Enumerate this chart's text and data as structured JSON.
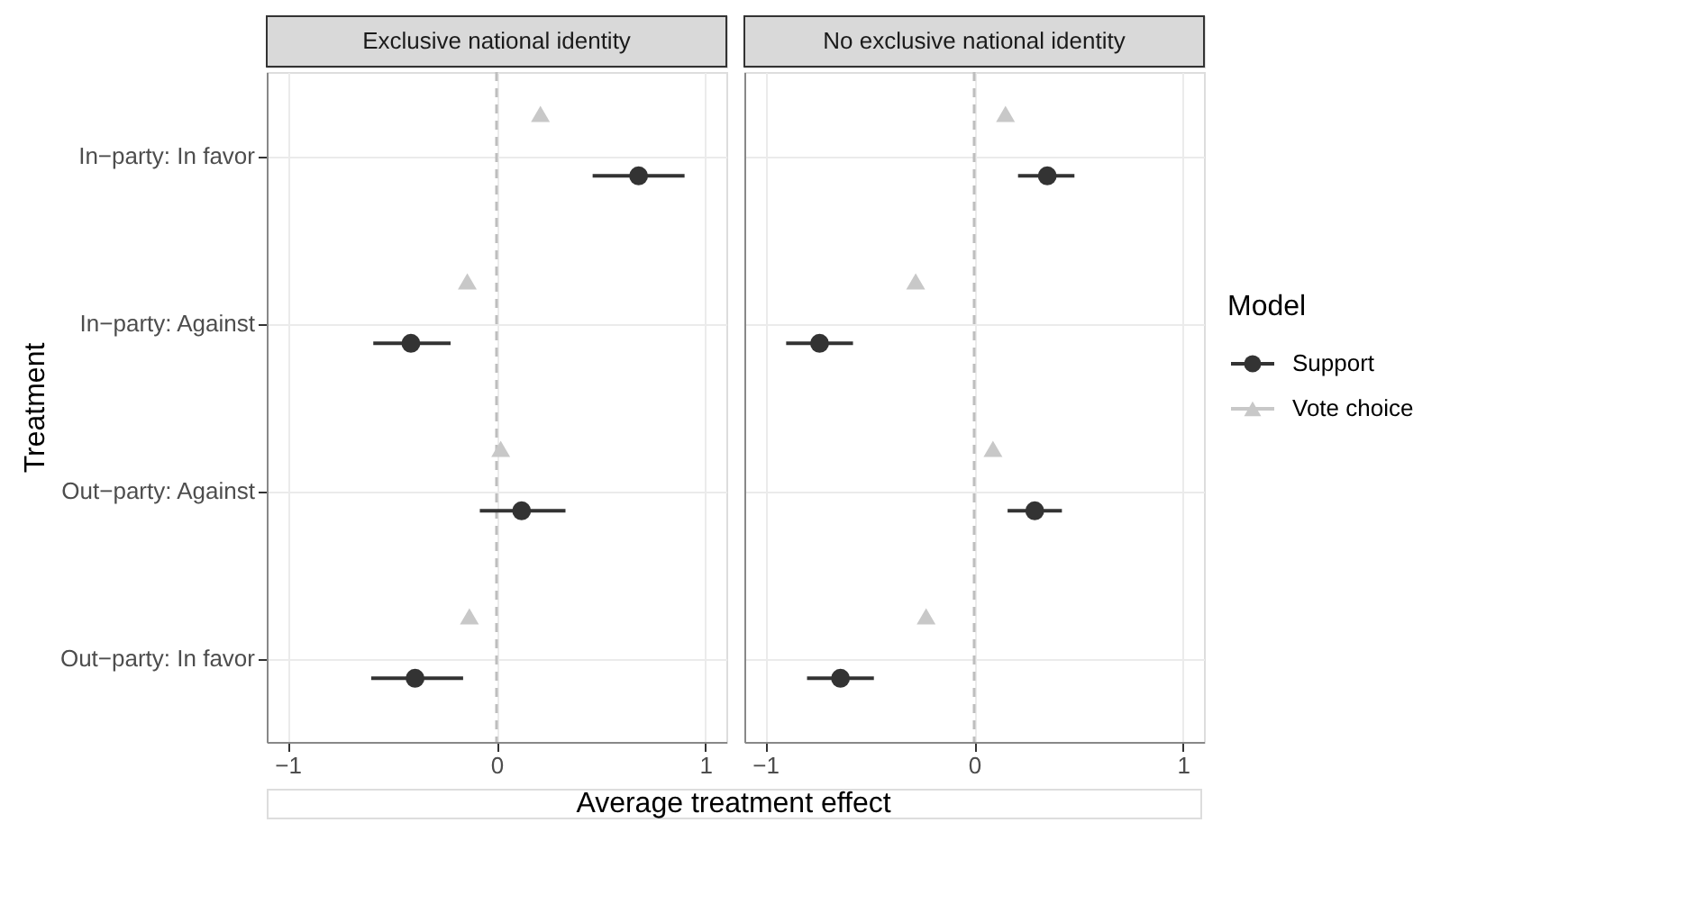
{
  "chart_data": [
    {
      "type": "scatter",
      "title": "Exclusive national identity",
      "orientation": "horizontal",
      "categories": [
        "In−party: In favor",
        "In−party: Against",
        "Out−party: Against",
        "Out−party: In favor"
      ],
      "ylabel": "Treatment",
      "xlabel": "Average treatment effect",
      "legend_title": "Model",
      "legend": "right",
      "grid": true,
      "xlim": [
        -1.1,
        1.1
      ],
      "xticks": [
        {
          "value": -1,
          "label": "−1"
        },
        0,
        1
      ],
      "series": [
        {
          "name": "Support",
          "color": "#333333",
          "marker": "circle",
          "values": [
            0.68,
            -0.41,
            0.12,
            -0.39
          ],
          "errors": [
            [
              0.46,
              0.9
            ],
            [
              -0.59,
              -0.22
            ],
            [
              -0.08,
              0.33
            ],
            [
              -0.6,
              -0.16
            ]
          ]
        },
        {
          "name": "Vote choice",
          "color": "#c8c8c8",
          "marker": "triangle",
          "values": [
            0.21,
            -0.14,
            0.02,
            -0.13
          ]
        }
      ],
      "ref_lines": [
        {
          "axis": "x",
          "value": 0,
          "color": "#bebebe",
          "line_style": "dashed"
        }
      ]
    },
    {
      "type": "scatter",
      "title": "No exclusive national identity",
      "orientation": "horizontal",
      "categories": [
        "In−party: In favor",
        "In−party: Against",
        "Out−party: Against",
        "Out−party: In favor"
      ],
      "tick_labels": "x",
      "legend": "right",
      "grid": true,
      "xlim": [
        -1.1,
        1.1
      ],
      "xticks": [
        {
          "value": -1,
          "label": "−1"
        },
        0,
        1
      ],
      "series": [
        {
          "name": "Support",
          "color": "#333333",
          "marker": "circle",
          "values": [
            0.35,
            -0.74,
            0.29,
            -0.64
          ],
          "errors": [
            [
              0.21,
              0.48
            ],
            [
              -0.9,
              -0.58
            ],
            [
              0.16,
              0.42
            ],
            [
              -0.8,
              -0.48
            ]
          ]
        },
        {
          "name": "Vote choice",
          "color": "#c8c8c8",
          "marker": "triangle",
          "values": [
            0.15,
            -0.28,
            0.09,
            -0.23
          ]
        }
      ],
      "ref_lines": [
        {
          "axis": "x",
          "value": 0,
          "color": "#bebebe",
          "line_style": "dashed"
        }
      ]
    }
  ]
}
